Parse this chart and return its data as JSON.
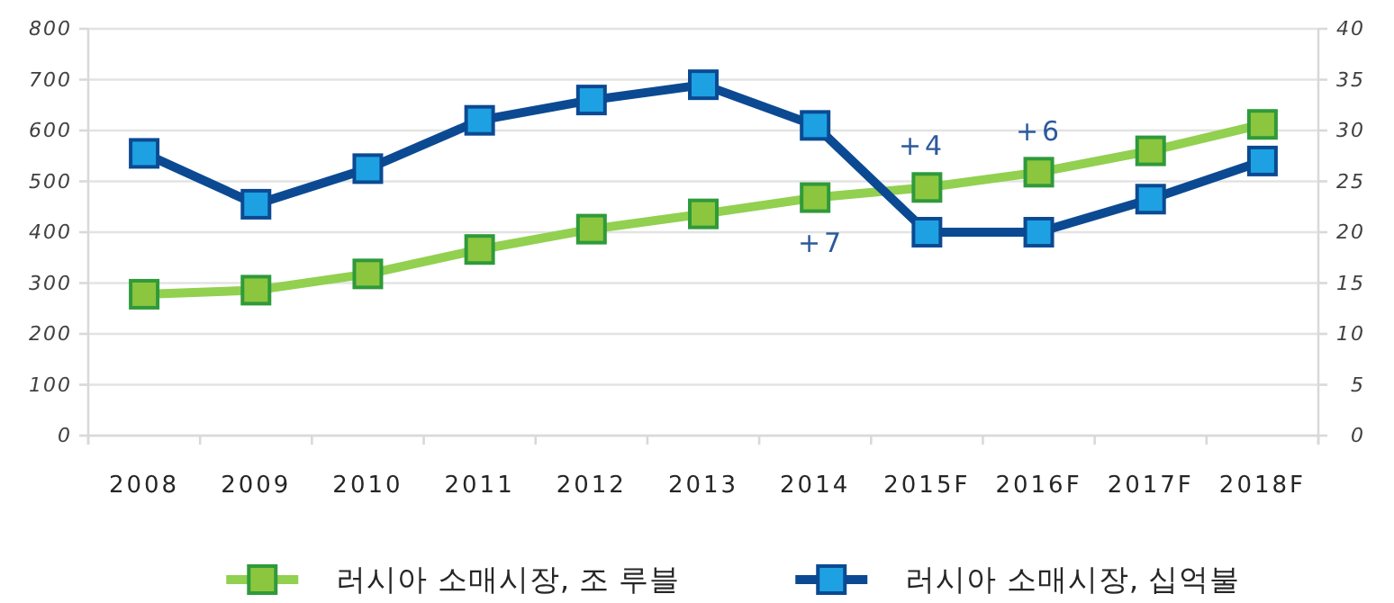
{
  "chart_data": {
    "type": "line",
    "categories": [
      "2008",
      "2009",
      "2010",
      "2011",
      "2012",
      "2013",
      "2014",
      "2015F",
      "2016F",
      "2017F",
      "2018F"
    ],
    "series": [
      {
        "name": "러시아 소매시장, 조 루블",
        "color": "#92d050",
        "axis": "y2",
        "values": [
          13.9,
          14.3,
          15.9,
          18.3,
          20.3,
          21.8,
          23.4,
          24.4,
          25.9,
          28.0,
          30.6
        ]
      },
      {
        "name": "러시아 소매시장, 십억불",
        "color": "#0b4a92",
        "values": [
          555,
          455,
          525,
          620,
          660,
          690,
          610,
          400,
          400,
          465,
          540
        ]
      }
    ],
    "ylim": [
      0,
      800
    ],
    "yticks": [
      0,
      100,
      200,
      300,
      400,
      500,
      600,
      700,
      800
    ],
    "y2lim": [
      0,
      40
    ],
    "y2ticks": [
      0,
      5,
      10,
      15,
      20,
      25,
      30,
      35,
      40
    ],
    "grid": "y",
    "legend": "bottom",
    "marker": "square",
    "line_style": "solid",
    "annotations": [
      "+7",
      "+4",
      "+6"
    ]
  }
}
